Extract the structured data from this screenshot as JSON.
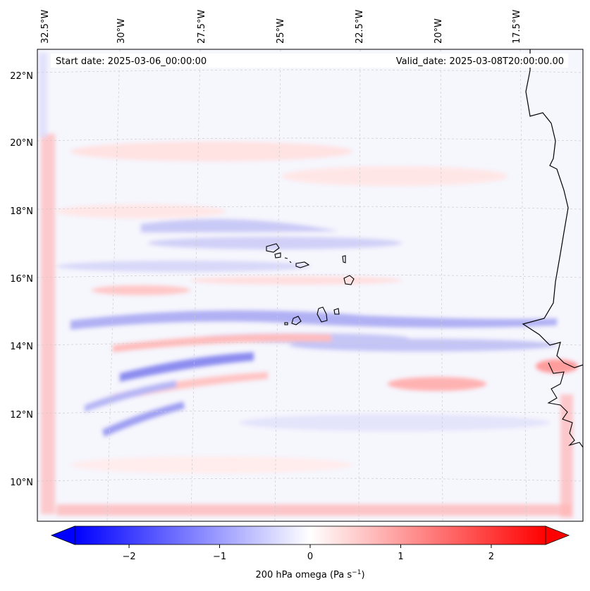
{
  "header": {
    "start_date": "Start date: 2025-03-06_00:00:00",
    "valid_date": "Valid_date: 2025-03-08T20:00:00.00"
  },
  "map": {
    "lon_labels": [
      "32.5°W",
      "30°W",
      "27.5°W",
      "25°W",
      "22.5°W",
      "20°W",
      "17.5°W"
    ],
    "lat_labels": [
      "22°N",
      "20°N",
      "18°N",
      "16°N",
      "14°N",
      "12°N",
      "10°N"
    ],
    "islands": "Cape Verde",
    "coast": "West Africa"
  },
  "colorbar": {
    "label": "200 hPa omega (Pa s",
    "label_sup": "−1",
    "label_end": ")",
    "ticks": [
      "−2",
      "−1",
      "0",
      "1",
      "2"
    ],
    "tick_values": [
      -2,
      -1,
      0,
      1,
      2
    ],
    "range": [
      -2.6,
      2.6
    ],
    "cmap": "bwr",
    "colors": {
      "neg": "#0000ff",
      "mid": "#ffffff",
      "pos": "#ff0000"
    }
  },
  "chart_data": {
    "type": "heatmap",
    "variable": "200 hPa omega",
    "units": "Pa s-1",
    "lon_range": [
      -33.0,
      -15.0
    ],
    "lat_range": [
      9.0,
      22.5
    ],
    "vmin": -2.6,
    "vmax": 2.6,
    "bands": [
      {
        "name": "southwest-ascent-streak",
        "value": -1.2
      },
      {
        "name": "central-ascent-band",
        "value": -0.7
      },
      {
        "name": "north-ascent-band",
        "value": -0.5
      },
      {
        "name": "south-subsidence-streak",
        "value": 0.6
      },
      {
        "name": "boundary-subsidence-west",
        "value": 0.6
      },
      {
        "name": "boundary-subsidence-south",
        "value": 0.7
      },
      {
        "name": "coastal-subsidence",
        "value": 0.8
      },
      {
        "name": "northern-weak-subsidence",
        "value": 0.2
      }
    ]
  }
}
